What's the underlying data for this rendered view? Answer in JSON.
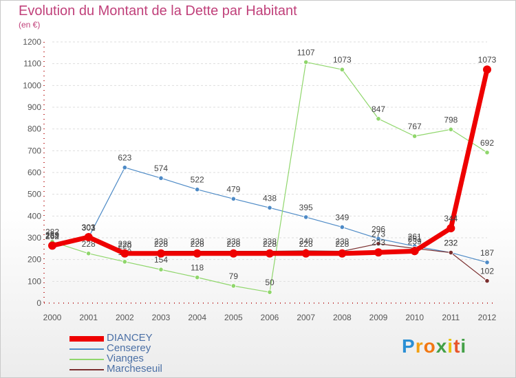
{
  "chart_data": {
    "type": "line",
    "title": "Evolution du Montant de la Dette par Habitant",
    "subtitle": "(en €)",
    "x": [
      "2000",
      "2001",
      "2002",
      "2003",
      "2004",
      "2005",
      "2006",
      "2007",
      "2008",
      "2009",
      "2010",
      "2011",
      "2012"
    ],
    "ylim": [
      0,
      1200
    ],
    "yticks": [
      0,
      100,
      200,
      300,
      400,
      500,
      600,
      700,
      800,
      900,
      1000,
      1100,
      1200
    ],
    "grid": true,
    "legend_position": "bottom-left",
    "series": [
      {
        "name": "DIANCEY",
        "color": "#ee0000",
        "values": [
          264,
          303,
          228,
          228,
          228,
          228,
          228,
          228,
          228,
          233,
          239,
          344,
          1073
        ]
      },
      {
        "name": "Censerey",
        "color": "#4d8ac6",
        "values": [
          262,
          301,
          623,
          574,
          522,
          479,
          438,
          395,
          349,
          296,
          261,
          232,
          187
        ]
      },
      {
        "name": "Vianges",
        "color": "#8fd66b",
        "values": [
          282,
          228,
          190,
          154,
          118,
          79,
          50,
          1107,
          1073,
          847,
          767,
          798,
          692
        ]
      },
      {
        "name": "Marcheseuil",
        "color": "#7a2e2e",
        "values": [
          269,
          303,
          220,
          238,
          238,
          238,
          238,
          240,
          238,
          273,
          251,
          232,
          102
        ]
      }
    ]
  },
  "brand": {
    "text": "Proxiti",
    "letters": [
      "P",
      "r",
      "o",
      "x",
      "i",
      "t",
      "i"
    ],
    "colors": [
      "#2a8fd4",
      "#f2a012",
      "#f27712",
      "#43a047",
      "#e8c10e",
      "#e8552b",
      "#43a047"
    ]
  }
}
